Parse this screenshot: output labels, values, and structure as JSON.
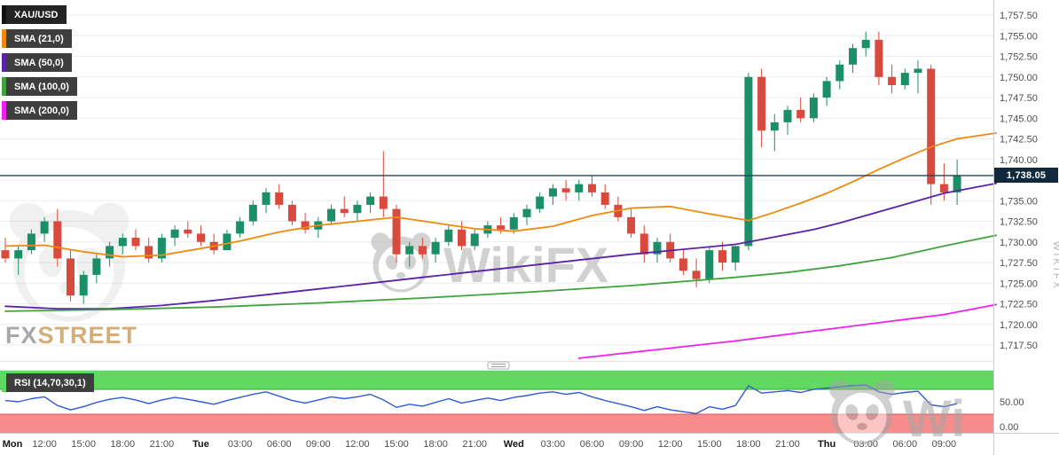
{
  "chart_data": {
    "type": "candlestick",
    "symbol": "XAU/USD",
    "current_price": 1738.05,
    "current_price_label": "1,738.05",
    "price_axis": {
      "min": 1717.5,
      "max": 1757.5,
      "step": 2.5,
      "labels": [
        {
          "p": 1757.5,
          "t": "1,757.50"
        },
        {
          "p": 1755,
          "t": "1,755.00"
        },
        {
          "p": 1752.5,
          "t": "1,752.50"
        },
        {
          "p": 1750,
          "t": "1,750.00"
        },
        {
          "p": 1747.5,
          "t": "1,747.50"
        },
        {
          "p": 1745,
          "t": "1,745.00"
        },
        {
          "p": 1742.5,
          "t": "1,742.50"
        },
        {
          "p": 1740,
          "t": "1,740.00"
        },
        {
          "p": 1735,
          "t": "1,735.00"
        },
        {
          "p": 1732.5,
          "t": "1,732.50"
        },
        {
          "p": 1730,
          "t": "1,730.00"
        },
        {
          "p": 1727.5,
          "t": "1,727.50"
        },
        {
          "p": 1725,
          "t": "1,725.00"
        },
        {
          "p": 1722.5,
          "t": "1,722.50"
        },
        {
          "p": 1720,
          "t": "1,720.00"
        },
        {
          "p": 1717.5,
          "t": "1,717.50"
        }
      ]
    },
    "time_labels": [
      {
        "i": 0,
        "t": "Mon",
        "d": 1
      },
      {
        "i": 3,
        "t": "12:00"
      },
      {
        "i": 6,
        "t": "15:00"
      },
      {
        "i": 9,
        "t": "18:00"
      },
      {
        "i": 12,
        "t": "21:00"
      },
      {
        "i": 15,
        "t": "Tue",
        "d": 1
      },
      {
        "i": 18,
        "t": "03:00"
      },
      {
        "i": 21,
        "t": "06:00"
      },
      {
        "i": 24,
        "t": "09:00"
      },
      {
        "i": 27,
        "t": "12:00"
      },
      {
        "i": 30,
        "t": "15:00"
      },
      {
        "i": 33,
        "t": "18:00"
      },
      {
        "i": 36,
        "t": "21:00"
      },
      {
        "i": 39,
        "t": "Wed",
        "d": 1
      },
      {
        "i": 42,
        "t": "03:00"
      },
      {
        "i": 45,
        "t": "06:00"
      },
      {
        "i": 48,
        "t": "09:00"
      },
      {
        "i": 51,
        "t": "12:00"
      },
      {
        "i": 54,
        "t": "15:00"
      },
      {
        "i": 57,
        "t": "18:00"
      },
      {
        "i": 60,
        "t": "21:00"
      },
      {
        "i": 63,
        "t": "Thu",
        "d": 1
      },
      {
        "i": 66,
        "t": "03:00"
      },
      {
        "i": 69,
        "t": "06:00"
      },
      {
        "i": 72,
        "t": "09:00"
      }
    ],
    "candles": [
      [
        1729,
        1730.5,
        1727.5,
        1728
      ],
      [
        1728,
        1729.5,
        1726,
        1729
      ],
      [
        1729,
        1731.5,
        1728.5,
        1731
      ],
      [
        1731,
        1733,
        1730,
        1732.5
      ],
      [
        1732.5,
        1734,
        1727,
        1728
      ],
      [
        1728,
        1729,
        1722.8,
        1723.5
      ],
      [
        1723.5,
        1726.5,
        1722.5,
        1726
      ],
      [
        1726,
        1728.5,
        1725,
        1728
      ],
      [
        1728,
        1730,
        1727,
        1729.5
      ],
      [
        1729.5,
        1731,
        1728.5,
        1730.5
      ],
      [
        1730.5,
        1731.5,
        1729,
        1729.5
      ],
      [
        1729.5,
        1730.5,
        1727.5,
        1728
      ],
      [
        1728,
        1731,
        1727.5,
        1730.5
      ],
      [
        1730.5,
        1732,
        1729.5,
        1731.5
      ],
      [
        1731.5,
        1732.5,
        1730.5,
        1731
      ],
      [
        1731,
        1732,
        1729.5,
        1730
      ],
      [
        1730,
        1731,
        1728.5,
        1729
      ],
      [
        1729,
        1731.5,
        1729,
        1731
      ],
      [
        1731,
        1733,
        1730.5,
        1732.5
      ],
      [
        1732.5,
        1735,
        1732,
        1734.5
      ],
      [
        1734.5,
        1736.5,
        1733.5,
        1736
      ],
      [
        1736,
        1737,
        1734,
        1734.5
      ],
      [
        1734.5,
        1735,
        1732,
        1732.5
      ],
      [
        1732.5,
        1733.5,
        1731,
        1731.5
      ],
      [
        1731.5,
        1733,
        1730.5,
        1732.5
      ],
      [
        1732.5,
        1734.5,
        1732,
        1734
      ],
      [
        1734,
        1735.5,
        1733,
        1733.5
      ],
      [
        1733.5,
        1735,
        1732.5,
        1734.5
      ],
      [
        1734.5,
        1736,
        1733.5,
        1735.5
      ],
      [
        1735.5,
        1741,
        1733,
        1734
      ],
      [
        1734,
        1734.5,
        1727.5,
        1728.5
      ],
      [
        1728.5,
        1730,
        1727,
        1729.5
      ],
      [
        1729.5,
        1730.5,
        1728,
        1728.5
      ],
      [
        1728.5,
        1730.5,
        1727.5,
        1730
      ],
      [
        1730,
        1732,
        1729.5,
        1731.5
      ],
      [
        1731.5,
        1732.5,
        1729,
        1729.5
      ],
      [
        1729.5,
        1731.5,
        1729,
        1731
      ],
      [
        1731,
        1732.5,
        1730.5,
        1732
      ],
      [
        1732,
        1733,
        1731,
        1731.5
      ],
      [
        1731.5,
        1733.5,
        1731,
        1733
      ],
      [
        1733,
        1734.5,
        1732,
        1734
      ],
      [
        1734,
        1736,
        1733.5,
        1735.5
      ],
      [
        1735.5,
        1737,
        1734.5,
        1736.5
      ],
      [
        1736.5,
        1737.5,
        1735,
        1736
      ],
      [
        1736,
        1737.5,
        1735,
        1737
      ],
      [
        1737,
        1738,
        1735.5,
        1736
      ],
      [
        1736,
        1737,
        1734,
        1734.5
      ],
      [
        1734.5,
        1735.5,
        1732.5,
        1733
      ],
      [
        1733,
        1734,
        1730.5,
        1731
      ],
      [
        1731,
        1732,
        1727.5,
        1728.5
      ],
      [
        1728.5,
        1730.5,
        1727.5,
        1730
      ],
      [
        1730,
        1731,
        1727.5,
        1728
      ],
      [
        1728,
        1729,
        1726,
        1726.5
      ],
      [
        1726.5,
        1728,
        1724.5,
        1725.5
      ],
      [
        1725.5,
        1729.5,
        1725,
        1729
      ],
      [
        1729,
        1730,
        1726.5,
        1727.5
      ],
      [
        1727.5,
        1729.5,
        1726.5,
        1729.5
      ],
      [
        1729.5,
        1750.5,
        1729,
        1750
      ],
      [
        1750,
        1751,
        1741.5,
        1743.5
      ],
      [
        1743.5,
        1745.5,
        1741,
        1744.5
      ],
      [
        1744.5,
        1746.5,
        1743,
        1746
      ],
      [
        1746,
        1747.5,
        1744.5,
        1745
      ],
      [
        1745,
        1748,
        1744.5,
        1747.5
      ],
      [
        1747.5,
        1750,
        1746.5,
        1749.5
      ],
      [
        1749.5,
        1752,
        1748.5,
        1751.5
      ],
      [
        1751.5,
        1754,
        1750.5,
        1753.5
      ],
      [
        1753.5,
        1755.5,
        1752.5,
        1754.5
      ],
      [
        1754.5,
        1755.5,
        1749,
        1750
      ],
      [
        1750,
        1751.5,
        1748,
        1749
      ],
      [
        1749,
        1751,
        1748.5,
        1750.5
      ],
      [
        1750.5,
        1752,
        1748,
        1751
      ],
      [
        1751,
        1751.5,
        1734.5,
        1737
      ],
      [
        1737,
        1739.5,
        1735,
        1736
      ],
      [
        1736,
        1740,
        1734.5,
        1738.05
      ]
    ],
    "sma": [
      {
        "label": "SMA (21,0)",
        "color": "#ef8a10",
        "points": [
          [
            0,
            1729.5
          ],
          [
            3,
            1729.6
          ],
          [
            6,
            1728.8
          ],
          [
            9,
            1728.2
          ],
          [
            12,
            1728.4
          ],
          [
            15,
            1729.2
          ],
          [
            18,
            1730.1
          ],
          [
            21,
            1731.2
          ],
          [
            24,
            1732
          ],
          [
            27,
            1732.5
          ],
          [
            30,
            1733
          ],
          [
            33,
            1732.3
          ],
          [
            36,
            1731.6
          ],
          [
            39,
            1731.3
          ],
          [
            42,
            1731.9
          ],
          [
            45,
            1733.2
          ],
          [
            48,
            1734.1
          ],
          [
            51,
            1734.3
          ],
          [
            54,
            1733.4
          ],
          [
            57,
            1732.6
          ],
          [
            59,
            1733.6
          ],
          [
            61,
            1734.7
          ],
          [
            63,
            1735.9
          ],
          [
            65,
            1737.3
          ],
          [
            67,
            1738.8
          ],
          [
            69,
            1740.2
          ],
          [
            71,
            1741.5
          ],
          [
            73,
            1742.5
          ],
          [
            76,
            1743.2
          ]
        ]
      },
      {
        "label": "SMA (50,0)",
        "color": "#5a23a8",
        "points": [
          [
            0,
            1722.2
          ],
          [
            4,
            1721.9
          ],
          [
            8,
            1721.9
          ],
          [
            12,
            1722.3
          ],
          [
            16,
            1722.9
          ],
          [
            20,
            1723.6
          ],
          [
            24,
            1724.3
          ],
          [
            28,
            1725
          ],
          [
            32,
            1725.7
          ],
          [
            36,
            1726.4
          ],
          [
            40,
            1727.1
          ],
          [
            44,
            1727.8
          ],
          [
            48,
            1728.5
          ],
          [
            52,
            1729.1
          ],
          [
            56,
            1729.7
          ],
          [
            58,
            1730.3
          ],
          [
            60,
            1730.9
          ],
          [
            62,
            1731.5
          ],
          [
            64,
            1732.3
          ],
          [
            66,
            1733.2
          ],
          [
            68,
            1734.1
          ],
          [
            70,
            1735
          ],
          [
            72,
            1735.9
          ],
          [
            76,
            1737.1
          ]
        ]
      },
      {
        "label": "SMA (100,0)",
        "color": "#41a33e",
        "points": [
          [
            0,
            1721.6
          ],
          [
            8,
            1721.8
          ],
          [
            16,
            1722.1
          ],
          [
            24,
            1722.6
          ],
          [
            32,
            1723.2
          ],
          [
            40,
            1723.9
          ],
          [
            48,
            1724.7
          ],
          [
            56,
            1725.7
          ],
          [
            60,
            1726.3
          ],
          [
            64,
            1727.1
          ],
          [
            68,
            1728.1
          ],
          [
            70,
            1728.8
          ],
          [
            72,
            1729.5
          ],
          [
            76,
            1730.8
          ]
        ]
      },
      {
        "label": "SMA (200,0)",
        "color": "#f21ff2",
        "points": [
          [
            44,
            1715.9
          ],
          [
            48,
            1716.6
          ],
          [
            52,
            1717.3
          ],
          [
            56,
            1718
          ],
          [
            60,
            1718.8
          ],
          [
            64,
            1719.6
          ],
          [
            68,
            1720.4
          ],
          [
            72,
            1721.2
          ],
          [
            76,
            1722.4
          ]
        ]
      }
    ],
    "rsi": {
      "label": "RSI (14,70,30,1)",
      "upper": 70,
      "lower": 30,
      "axis_labels": [
        {
          "v": 50,
          "t": "50.00"
        },
        {
          "v": 0,
          "t": "0.00"
        }
      ],
      "values": [
        52,
        50,
        55,
        58,
        44,
        37,
        42,
        49,
        54,
        57,
        53,
        47,
        53,
        57,
        54,
        50,
        46,
        52,
        57,
        62,
        66,
        59,
        52,
        48,
        53,
        58,
        55,
        58,
        62,
        53,
        41,
        46,
        43,
        49,
        55,
        48,
        52,
        56,
        52,
        57,
        60,
        64,
        66,
        62,
        65,
        58,
        52,
        47,
        42,
        36,
        42,
        37,
        34,
        31,
        42,
        38,
        44,
        76,
        64,
        66,
        68,
        65,
        70,
        72,
        74,
        76,
        77,
        66,
        62,
        65,
        67,
        45,
        42,
        47
      ]
    },
    "colors": {
      "up": "#1b9066",
      "down": "#d84a3d",
      "grid": "#ededed",
      "axis_border": "#cccccc",
      "axis_text": "#4d4d4d",
      "axis_day_text": "#151515",
      "price_line": "#24445e",
      "price_tag_bg": "#10293f",
      "rsi_line": "#2f5bd7",
      "rsi_upper_fill": "#61d861",
      "rsi_upper_edge": "#2fae2f",
      "rsi_lower_fill": "#f78c8c",
      "rsi_lower_edge": "#e05050",
      "watermark": "#b4b4b4"
    }
  },
  "watermarks": {
    "brand": "WikiFX",
    "brand_partial": "Wi",
    "vertical": "WIKIFX",
    "fx": "FX",
    "street": "STREET"
  }
}
